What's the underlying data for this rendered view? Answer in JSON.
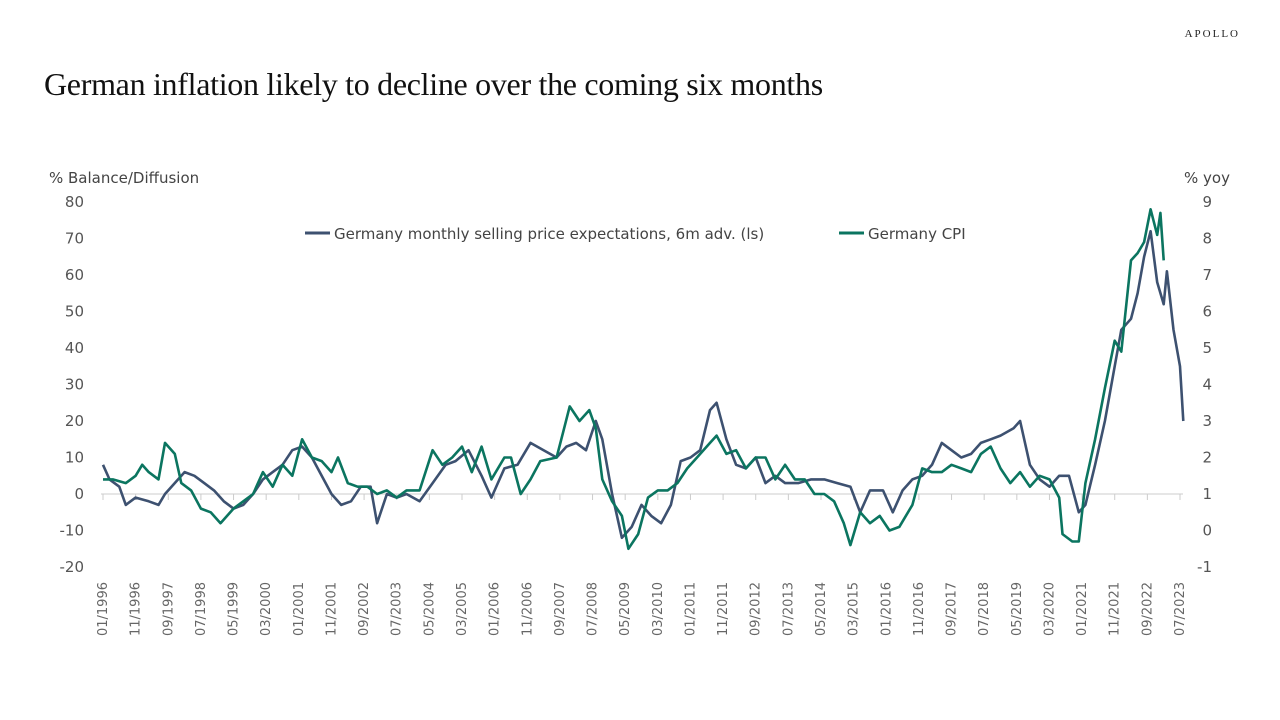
{
  "brand": "APOLLO",
  "title": "German inflation likely to decline over the coming six months",
  "colors": {
    "expectations": "#3d5170",
    "cpi": "#0b7560",
    "baseline": "#cccccc"
  },
  "chart_data": {
    "type": "line",
    "title": "German inflation likely to decline over the coming six months",
    "left_axis": {
      "label": "% Balance/Diffusion",
      "range": [
        -20,
        80
      ],
      "ticks": [
        80,
        70,
        60,
        50,
        40,
        30,
        20,
        10,
        0,
        -10,
        -20
      ]
    },
    "right_axis": {
      "label": "% yoy",
      "range": [
        -1,
        9
      ],
      "ticks": [
        9,
        8,
        7,
        6,
        5,
        4,
        3,
        2,
        1,
        0,
        -1
      ]
    },
    "x_range": [
      "1996-01",
      "2023-07"
    ],
    "x_tick_labels": [
      "01/1996",
      "11/1996",
      "09/1997",
      "07/1998",
      "05/1999",
      "03/2000",
      "01/2001",
      "11/2001",
      "09/2002",
      "07/2003",
      "05/2004",
      "03/2005",
      "01/2006",
      "11/2006",
      "09/2007",
      "07/2008",
      "05/2009",
      "03/2010",
      "01/2011",
      "11/2011",
      "09/2012",
      "07/2013",
      "05/2014",
      "03/2015",
      "01/2016",
      "11/2016",
      "09/2017",
      "07/2018",
      "05/2019",
      "03/2020",
      "01/2021",
      "11/2021",
      "09/2022",
      "07/2023"
    ],
    "legend": "top-center",
    "grid": false,
    "series": [
      {
        "name": "Germany monthly selling price expectations, 6m adv. (ls)",
        "axis": "left",
        "points": [
          [
            "1996-01",
            8
          ],
          [
            "1996-03",
            4
          ],
          [
            "1996-06",
            2
          ],
          [
            "1996-08",
            -3
          ],
          [
            "1996-11",
            -1
          ],
          [
            "1997-03",
            -2
          ],
          [
            "1997-06",
            -3
          ],
          [
            "1997-08",
            0
          ],
          [
            "1997-10",
            2
          ],
          [
            "1997-12",
            4
          ],
          [
            "1998-02",
            6
          ],
          [
            "1998-05",
            5
          ],
          [
            "1998-08",
            3
          ],
          [
            "1998-11",
            1
          ],
          [
            "1999-02",
            -2
          ],
          [
            "1999-05",
            -4
          ],
          [
            "1999-08",
            -3
          ],
          [
            "1999-11",
            0
          ],
          [
            "2000-02",
            4
          ],
          [
            "2000-05",
            6
          ],
          [
            "2000-08",
            8
          ],
          [
            "2000-11",
            12
          ],
          [
            "2001-02",
            13
          ],
          [
            "2001-05",
            10
          ],
          [
            "2001-08",
            5
          ],
          [
            "2001-11",
            0
          ],
          [
            "2002-02",
            -3
          ],
          [
            "2002-05",
            -2
          ],
          [
            "2002-08",
            2
          ],
          [
            "2002-11",
            2
          ],
          [
            "2003-01",
            -8
          ],
          [
            "2003-04",
            0
          ],
          [
            "2003-07",
            -1
          ],
          [
            "2003-10",
            0
          ],
          [
            "2004-02",
            -2
          ],
          [
            "2004-06",
            3
          ],
          [
            "2004-10",
            8
          ],
          [
            "2005-01",
            9
          ],
          [
            "2005-05",
            12
          ],
          [
            "2005-09",
            5
          ],
          [
            "2005-12",
            -1
          ],
          [
            "2006-04",
            7
          ],
          [
            "2006-08",
            8
          ],
          [
            "2006-12",
            14
          ],
          [
            "2007-04",
            12
          ],
          [
            "2007-08",
            10
          ],
          [
            "2007-11",
            13
          ],
          [
            "2008-02",
            14
          ],
          [
            "2008-05",
            12
          ],
          [
            "2008-08",
            20
          ],
          [
            "2008-10",
            15
          ],
          [
            "2009-01",
            0
          ],
          [
            "2009-04",
            -12
          ],
          [
            "2009-07",
            -9
          ],
          [
            "2009-10",
            -3
          ],
          [
            "2010-01",
            -6
          ],
          [
            "2010-04",
            -8
          ],
          [
            "2010-07",
            -3
          ],
          [
            "2010-10",
            9
          ],
          [
            "2011-01",
            10
          ],
          [
            "2011-04",
            12
          ],
          [
            "2011-07",
            23
          ],
          [
            "2011-09",
            25
          ],
          [
            "2011-12",
            15
          ],
          [
            "2012-03",
            8
          ],
          [
            "2012-06",
            7
          ],
          [
            "2012-09",
            10
          ],
          [
            "2012-12",
            3
          ],
          [
            "2013-03",
            5
          ],
          [
            "2013-06",
            3
          ],
          [
            "2013-10",
            3
          ],
          [
            "2014-02",
            4
          ],
          [
            "2014-06",
            4
          ],
          [
            "2014-10",
            3
          ],
          [
            "2015-02",
            2
          ],
          [
            "2015-05",
            -5
          ],
          [
            "2015-08",
            1
          ],
          [
            "2015-12",
            1
          ],
          [
            "2016-03",
            -5
          ],
          [
            "2016-06",
            1
          ],
          [
            "2016-09",
            4
          ],
          [
            "2016-12",
            5
          ],
          [
            "2017-03",
            8
          ],
          [
            "2017-06",
            14
          ],
          [
            "2017-09",
            12
          ],
          [
            "2017-12",
            10
          ],
          [
            "2018-03",
            11
          ],
          [
            "2018-06",
            14
          ],
          [
            "2018-09",
            15
          ],
          [
            "2018-12",
            16
          ],
          [
            "2019-04",
            18
          ],
          [
            "2019-06",
            20
          ],
          [
            "2019-09",
            8
          ],
          [
            "2019-12",
            4
          ],
          [
            "2020-03",
            2
          ],
          [
            "2020-06",
            5
          ],
          [
            "2020-09",
            5
          ],
          [
            "2020-12",
            -5
          ],
          [
            "2021-02",
            -3
          ],
          [
            "2021-05",
            8
          ],
          [
            "2021-08",
            20
          ],
          [
            "2021-11",
            35
          ],
          [
            "2022-01",
            45
          ],
          [
            "2022-04",
            48
          ],
          [
            "2022-06",
            55
          ],
          [
            "2022-08",
            65
          ],
          [
            "2022-10",
            72
          ],
          [
            "2022-12",
            58
          ],
          [
            "2023-02",
            52
          ],
          [
            "2023-03",
            61
          ],
          [
            "2023-05",
            45
          ],
          [
            "2023-07",
            35
          ],
          [
            "2023-08",
            20
          ]
        ]
      },
      {
        "name": "Germany CPI",
        "axis": "right",
        "points": [
          [
            "1996-01",
            1.4
          ],
          [
            "1996-04",
            1.4
          ],
          [
            "1996-08",
            1.3
          ],
          [
            "1996-11",
            1.5
          ],
          [
            "1997-01",
            1.8
          ],
          [
            "1997-03",
            1.6
          ],
          [
            "1997-06",
            1.4
          ],
          [
            "1997-08",
            2.4
          ],
          [
            "1997-11",
            2.1
          ],
          [
            "1998-01",
            1.3
          ],
          [
            "1998-04",
            1.1
          ],
          [
            "1998-07",
            0.6
          ],
          [
            "1998-10",
            0.5
          ],
          [
            "1999-01",
            0.2
          ],
          [
            "1999-05",
            0.6
          ],
          [
            "1999-08",
            0.8
          ],
          [
            "1999-11",
            1.0
          ],
          [
            "2000-02",
            1.6
          ],
          [
            "2000-05",
            1.2
          ],
          [
            "2000-08",
            1.8
          ],
          [
            "2000-11",
            1.5
          ],
          [
            "2001-02",
            2.5
          ],
          [
            "2001-05",
            2.0
          ],
          [
            "2001-08",
            1.9
          ],
          [
            "2001-11",
            1.6
          ],
          [
            "2002-01",
            2.0
          ],
          [
            "2002-04",
            1.3
          ],
          [
            "2002-07",
            1.2
          ],
          [
            "2002-10",
            1.2
          ],
          [
            "2003-01",
            1.0
          ],
          [
            "2003-04",
            1.1
          ],
          [
            "2003-07",
            0.9
          ],
          [
            "2003-10",
            1.1
          ],
          [
            "2004-02",
            1.1
          ],
          [
            "2004-06",
            2.2
          ],
          [
            "2004-09",
            1.8
          ],
          [
            "2004-12",
            2.0
          ],
          [
            "2005-03",
            2.3
          ],
          [
            "2005-06",
            1.6
          ],
          [
            "2005-09",
            2.3
          ],
          [
            "2005-12",
            1.4
          ],
          [
            "2006-04",
            2.0
          ],
          [
            "2006-06",
            2.0
          ],
          [
            "2006-09",
            1.0
          ],
          [
            "2006-12",
            1.4
          ],
          [
            "2007-03",
            1.9
          ],
          [
            "2007-08",
            2.0
          ],
          [
            "2007-10",
            2.7
          ],
          [
            "2007-12",
            3.4
          ],
          [
            "2008-03",
            3.0
          ],
          [
            "2008-06",
            3.3
          ],
          [
            "2008-08",
            2.8
          ],
          [
            "2008-10",
            1.4
          ],
          [
            "2009-01",
            0.8
          ],
          [
            "2009-04",
            0.4
          ],
          [
            "2009-06",
            -0.5
          ],
          [
            "2009-09",
            -0.1
          ],
          [
            "2009-12",
            0.9
          ],
          [
            "2010-03",
            1.1
          ],
          [
            "2010-06",
            1.1
          ],
          [
            "2010-09",
            1.3
          ],
          [
            "2010-12",
            1.7
          ],
          [
            "2011-03",
            2.0
          ],
          [
            "2011-07",
            2.4
          ],
          [
            "2011-09",
            2.6
          ],
          [
            "2011-12",
            2.1
          ],
          [
            "2012-03",
            2.2
          ],
          [
            "2012-06",
            1.7
          ],
          [
            "2012-09",
            2.0
          ],
          [
            "2012-12",
            2.0
          ],
          [
            "2013-03",
            1.4
          ],
          [
            "2013-06",
            1.8
          ],
          [
            "2013-09",
            1.4
          ],
          [
            "2013-12",
            1.4
          ],
          [
            "2014-03",
            1.0
          ],
          [
            "2014-06",
            1.0
          ],
          [
            "2014-09",
            0.8
          ],
          [
            "2014-12",
            0.2
          ],
          [
            "2015-02",
            -0.4
          ],
          [
            "2015-05",
            0.5
          ],
          [
            "2015-08",
            0.2
          ],
          [
            "2015-11",
            0.4
          ],
          [
            "2016-02",
            0.0
          ],
          [
            "2016-05",
            0.1
          ],
          [
            "2016-09",
            0.7
          ],
          [
            "2016-12",
            1.7
          ],
          [
            "2017-03",
            1.6
          ],
          [
            "2017-06",
            1.6
          ],
          [
            "2017-09",
            1.8
          ],
          [
            "2017-12",
            1.7
          ],
          [
            "2018-03",
            1.6
          ],
          [
            "2018-06",
            2.1
          ],
          [
            "2018-09",
            2.3
          ],
          [
            "2018-12",
            1.7
          ],
          [
            "2019-03",
            1.3
          ],
          [
            "2019-06",
            1.6
          ],
          [
            "2019-09",
            1.2
          ],
          [
            "2019-12",
            1.5
          ],
          [
            "2020-03",
            1.4
          ],
          [
            "2020-06",
            0.9
          ],
          [
            "2020-07",
            -0.1
          ],
          [
            "2020-10",
            -0.3
          ],
          [
            "2020-12",
            -0.3
          ],
          [
            "2021-02",
            1.3
          ],
          [
            "2021-05",
            2.5
          ],
          [
            "2021-08",
            3.9
          ],
          [
            "2021-11",
            5.2
          ],
          [
            "2022-01",
            4.9
          ],
          [
            "2022-04",
            7.4
          ],
          [
            "2022-06",
            7.6
          ],
          [
            "2022-08",
            7.9
          ],
          [
            "2022-10",
            8.8
          ],
          [
            "2022-12",
            8.1
          ],
          [
            "2023-01",
            8.7
          ],
          [
            "2023-02",
            7.4
          ]
        ]
      }
    ]
  }
}
